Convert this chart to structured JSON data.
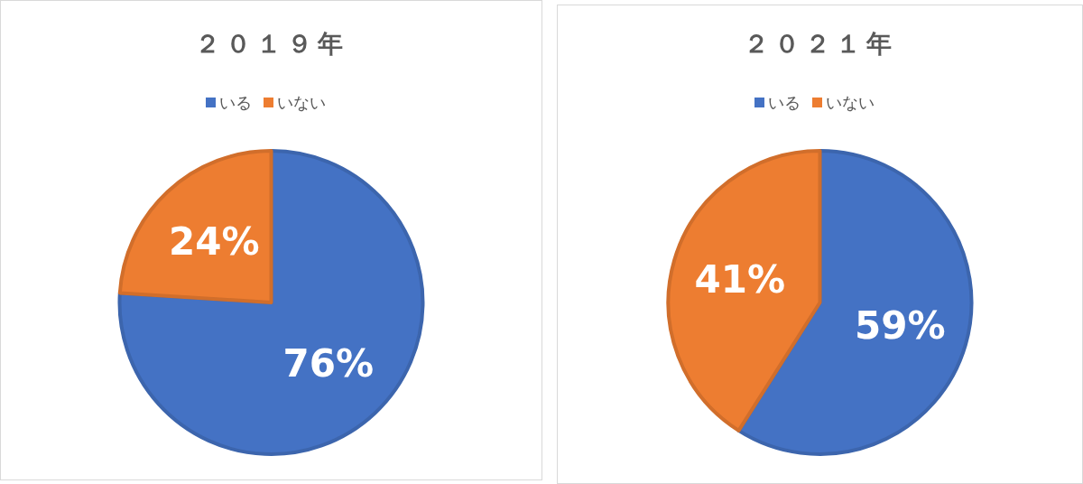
{
  "chart_data": [
    {
      "type": "pie",
      "title": "２０１９年",
      "categories": [
        "いる",
        "いない"
      ],
      "values": [
        76,
        24
      ],
      "colors": [
        "#4472c4",
        "#ed7d31"
      ],
      "value_labels": [
        "76%",
        "24%"
      ],
      "legend": "top"
    },
    {
      "type": "pie",
      "title": "２０２１年",
      "categories": [
        "いる",
        "いない"
      ],
      "values": [
        59,
        41
      ],
      "colors": [
        "#4472c4",
        "#ed7d31"
      ],
      "value_labels": [
        "59%",
        "41%"
      ],
      "legend": "top"
    }
  ]
}
